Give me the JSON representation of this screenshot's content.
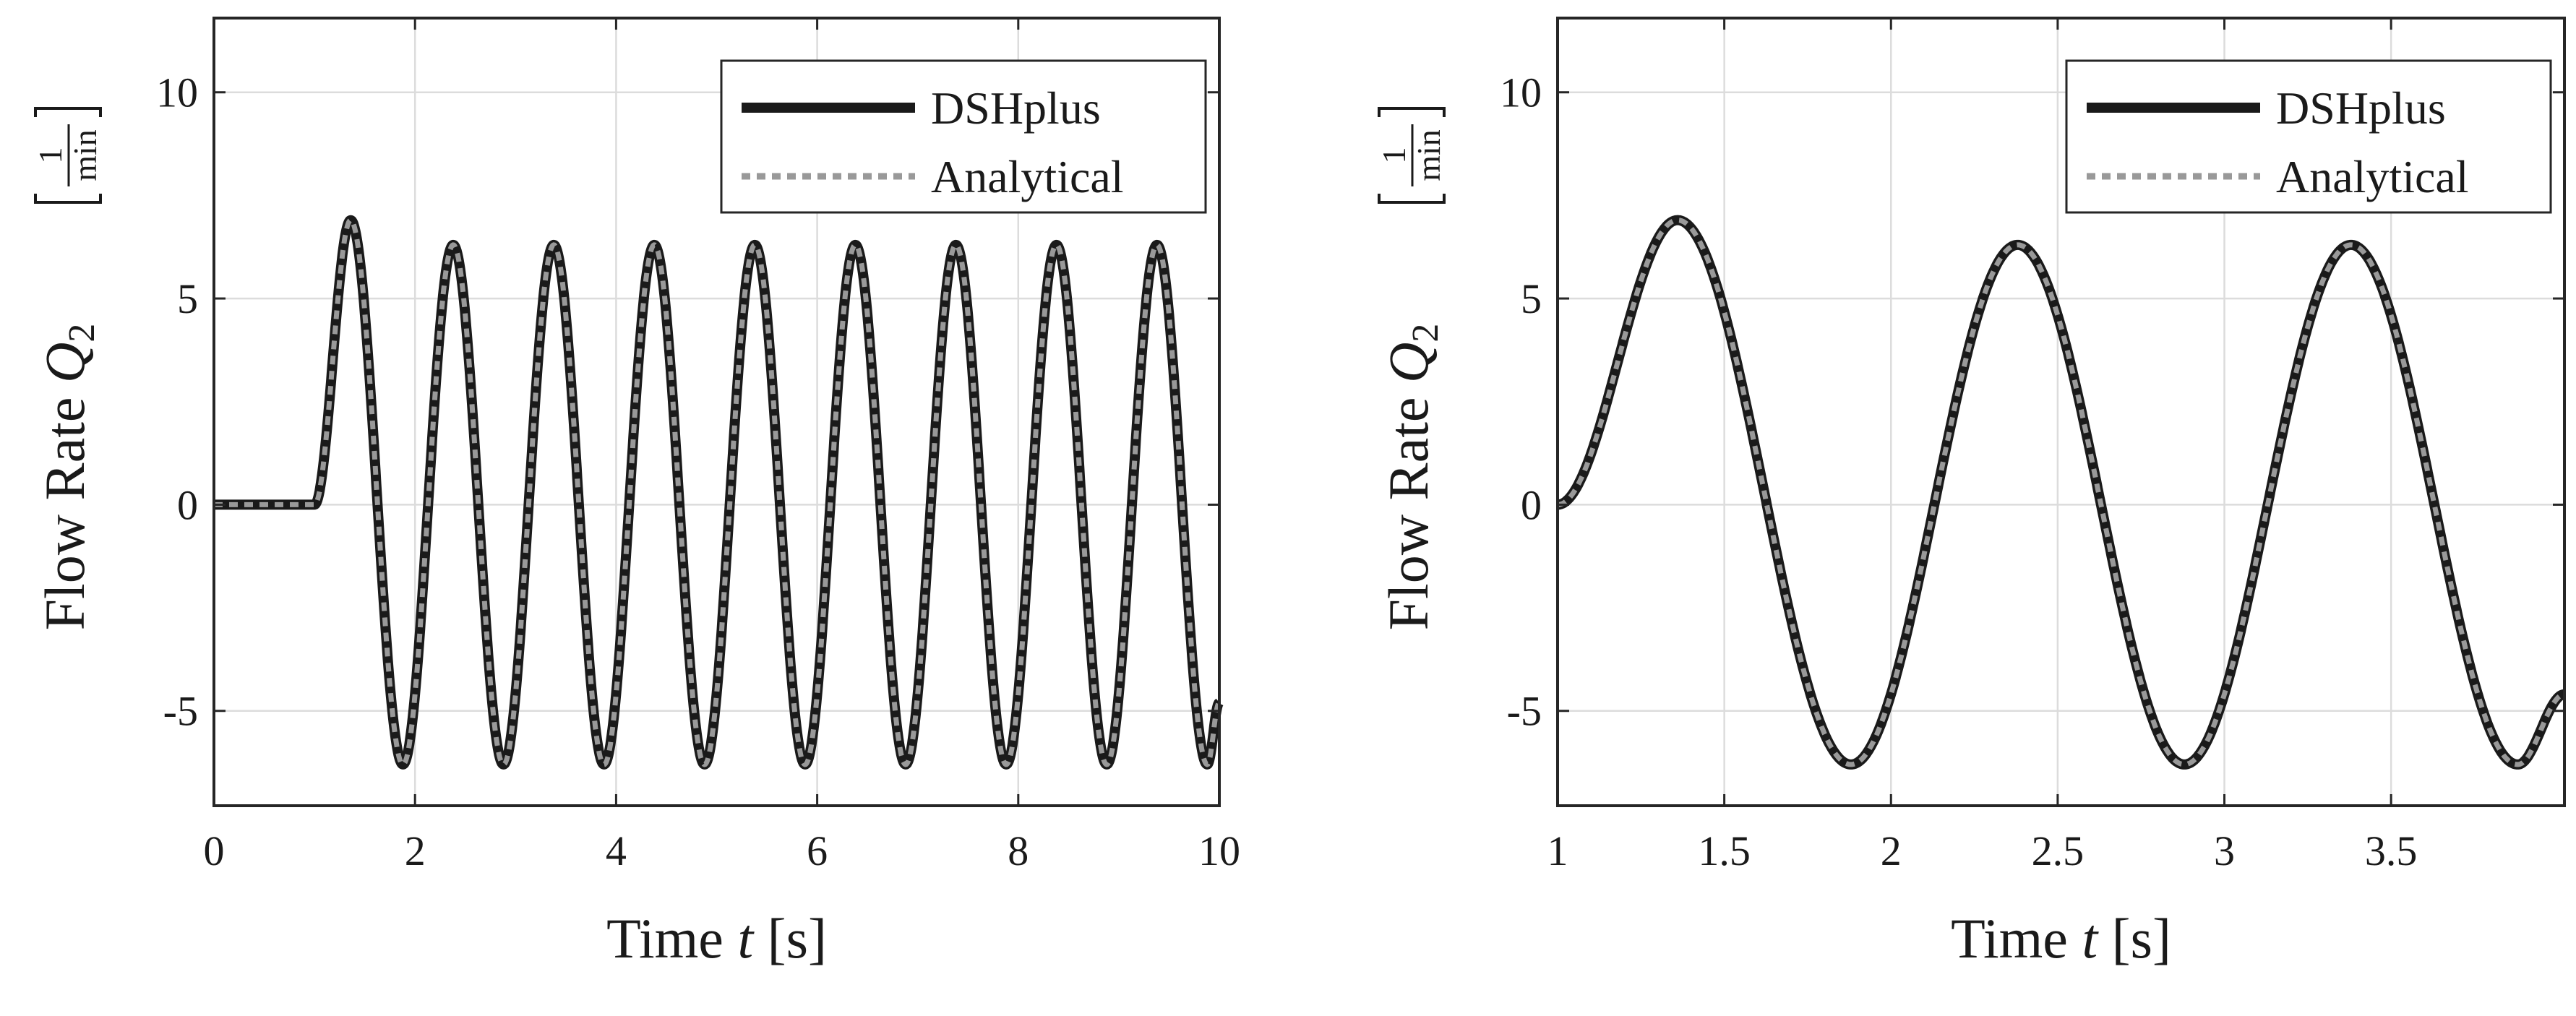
{
  "chart_data": [
    {
      "type": "line",
      "title": "",
      "xlabel_prefix": "Time ",
      "xlabel_var": "t",
      "xlabel_unit": " [s]",
      "ylabel_prefix": "Flow Rate ",
      "ylabel_var": "Q",
      "ylabel_sub": "2",
      "ylabel_unit_num": "1",
      "ylabel_unit_den": "min",
      "xlim": [
        0,
        10
      ],
      "ylim": [
        -7.3,
        11.8
      ],
      "xticks": [
        0,
        2,
        4,
        6,
        8,
        10
      ],
      "xtick_labels": [
        "0",
        "2",
        "4",
        "6",
        "8",
        "10"
      ],
      "yticks": [
        -5,
        0,
        5,
        10
      ],
      "ytick_labels": [
        "-5",
        "0",
        "5",
        "10"
      ],
      "grid": true,
      "legend_position": "top-right",
      "series": [
        {
          "name": "DSHplus",
          "style": "solid",
          "color": "#1a1a1a"
        },
        {
          "name": "Analytical",
          "style": "dotted",
          "color": "#999999"
        }
      ],
      "signal": {
        "x": [
          0,
          1.0,
          1.36,
          1.88,
          2.38,
          2.88,
          3.38,
          3.88,
          4.38,
          4.88,
          5.38,
          5.88,
          6.38,
          6.88,
          7.38,
          7.88,
          8.38,
          8.88,
          9.38,
          9.88,
          10.0
        ],
        "y": [
          0,
          0,
          6.9,
          -6.3,
          6.3,
          -6.3,
          6.3,
          -6.3,
          6.3,
          -6.3,
          6.3,
          -6.3,
          6.3,
          -6.3,
          6.3,
          -6.3,
          6.3,
          -6.3,
          6.3,
          -6.3,
          -4.8
        ]
      }
    },
    {
      "type": "line",
      "title": "",
      "xlabel_prefix": "Time ",
      "xlabel_var": "t",
      "xlabel_unit": " [s]",
      "ylabel_prefix": "Flow Rate ",
      "ylabel_var": "Q",
      "ylabel_sub": "2",
      "ylabel_unit_num": "1",
      "ylabel_unit_den": "min",
      "xlim": [
        1,
        4.02
      ],
      "ylim": [
        -7.3,
        11.8
      ],
      "xticks": [
        1,
        1.5,
        2,
        2.5,
        3,
        3.5
      ],
      "xtick_labels": [
        "1",
        "1.5",
        "2",
        "2.5",
        "3",
        "3.5"
      ],
      "yticks": [
        -5,
        0,
        5,
        10
      ],
      "ytick_labels": [
        "-5",
        "0",
        "5",
        "10"
      ],
      "grid": true,
      "legend_position": "top-right",
      "series": [
        {
          "name": "DSHplus",
          "style": "solid",
          "color": "#1a1a1a"
        },
        {
          "name": "Analytical",
          "style": "dotted",
          "color": "#999999"
        }
      ],
      "signal": {
        "x": [
          1.0,
          1.36,
          1.88,
          2.38,
          2.88,
          3.38,
          3.88,
          4.02
        ],
        "y": [
          0,
          6.9,
          -6.3,
          6.3,
          -6.3,
          6.3,
          -6.3,
          -4.6
        ]
      }
    }
  ]
}
